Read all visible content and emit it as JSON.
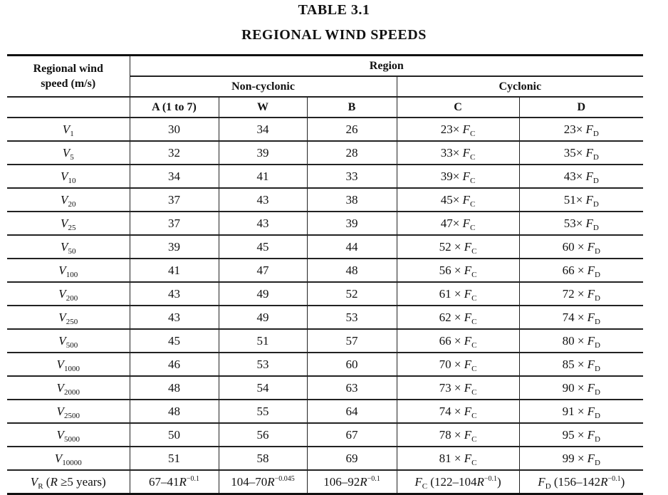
{
  "title": "TABLE 3.1",
  "subtitle": "REGIONAL WIND SPEEDS",
  "header": {
    "row_label_line1": "Regional wind",
    "row_label_line2": "speed (m/s)",
    "region": "Region",
    "non_cyclonic": "Non-cyclonic",
    "cyclonic": "Cyclonic",
    "columns": [
      "A (1 to 7)",
      "W",
      "B",
      "C",
      "D"
    ]
  },
  "rows": [
    {
      "label": "V",
      "sub": "1",
      "a": "30",
      "w": "34",
      "b": "26",
      "c": "23×",
      "d": "23×"
    },
    {
      "label": "V",
      "sub": "5",
      "a": "32",
      "w": "39",
      "b": "28",
      "c": "33×",
      "d": "35×"
    },
    {
      "label": "V",
      "sub": "10",
      "a": "34",
      "w": "41",
      "b": "33",
      "c": "39×",
      "d": "43×"
    },
    {
      "label": "V",
      "sub": "20",
      "a": "37",
      "w": "43",
      "b": "38",
      "c": "45×",
      "d": "51×"
    },
    {
      "label": "V",
      "sub": "25",
      "a": "37",
      "w": "43",
      "b": "39",
      "c": "47×",
      "d": "53×"
    },
    {
      "label": "V",
      "sub": "50",
      "a": "39",
      "w": "45",
      "b": "44",
      "c": "52 ×",
      "d": "60 ×"
    },
    {
      "label": "V",
      "sub": "100",
      "a": "41",
      "w": "47",
      "b": "48",
      "c": "56 ×",
      "d": "66 ×"
    },
    {
      "label": "V",
      "sub": "200",
      "a": "43",
      "w": "49",
      "b": "52",
      "c": "61 ×",
      "d": "72 ×"
    },
    {
      "label": "V",
      "sub": "250",
      "a": "43",
      "w": "49",
      "b": "53",
      "c": "62 ×",
      "d": "74 ×"
    },
    {
      "label": "V",
      "sub": "500",
      "a": "45",
      "w": "51",
      "b": "57",
      "c": "66 ×",
      "d": "80 ×"
    },
    {
      "label": "V",
      "sub": "1000",
      "a": "46",
      "w": "53",
      "b": "60",
      "c": "70 ×",
      "d": "85 ×"
    },
    {
      "label": "V",
      "sub": "2000",
      "a": "48",
      "w": "54",
      "b": "63",
      "c": "73 ×",
      "d": "90 ×"
    },
    {
      "label": "V",
      "sub": "2500",
      "a": "48",
      "w": "55",
      "b": "64",
      "c": "74 ×",
      "d": "91 ×"
    },
    {
      "label": "V",
      "sub": "5000",
      "a": "50",
      "w": "56",
      "b": "67",
      "c": "78 ×",
      "d": "95 ×"
    },
    {
      "label": "V",
      "sub": "10000",
      "a": "51",
      "w": "58",
      "b": "69",
      "c": "81 ×",
      "d": "99 ×"
    }
  ],
  "factor_c": {
    "symbol": "F",
    "sub": "C"
  },
  "factor_d": {
    "symbol": "F",
    "sub": "D"
  },
  "formula_row": {
    "label_v": "V",
    "label_sub": "R",
    "label_open": " (",
    "label_r": "R",
    "label_rest": " ≥5 years)",
    "a_base": "67–41",
    "a_r": "R",
    "a_exp": "−0.1",
    "w_base": "104–70",
    "w_r": "R",
    "w_exp": "−0.045",
    "b_base": "106–92",
    "b_r": "R",
    "b_exp": "−0.1",
    "c_f": "F",
    "c_sub": "C",
    "c_open": " (122–104",
    "c_r": "R",
    "c_exp": "−0.1",
    "c_close": ")",
    "d_f": "F",
    "d_sub": "D",
    "d_open": " (156–142",
    "d_r": "R",
    "d_exp": "−0.1",
    "d_close": ")"
  }
}
